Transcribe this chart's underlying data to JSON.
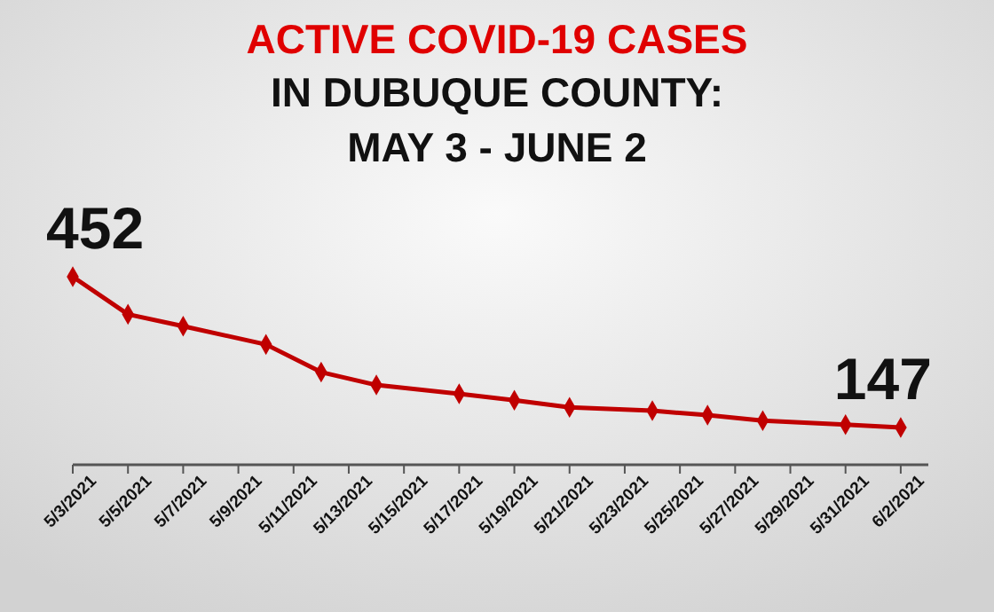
{
  "chart_data": {
    "type": "line",
    "title": "ACTIVE COVID-19 CASES",
    "subtitle": "IN DUBUQUE COUNTY:\nMAY 3 - JUNE 2",
    "x": [
      "2021-05-03",
      "2021-05-05",
      "2021-05-07",
      "2021-05-10",
      "2021-05-12",
      "2021-05-14",
      "2021-05-17",
      "2021-05-19",
      "2021-05-21",
      "2021-05-24",
      "2021-05-26",
      "2021-05-28",
      "2021-05-31",
      "2021-06-02"
    ],
    "series": [
      {
        "color": "#c00000",
        "values": [
          452,
          376,
          352,
          315,
          259,
          233,
          215,
          202,
          188,
          181,
          172,
          161,
          153,
          147
        ],
        "value_labels": [
          "452",
          null,
          null,
          null,
          null,
          null,
          null,
          null,
          null,
          null,
          null,
          null,
          null,
          "147"
        ]
      }
    ],
    "xlim": [
      "2021-05-03",
      "2021-06-03"
    ],
    "xticks": [
      {
        "value": "2021-05-03",
        "label": "5/3/2021"
      },
      {
        "value": "2021-05-05",
        "label": "5/5/2021"
      },
      {
        "value": "2021-05-07",
        "label": "5/7/2021"
      },
      {
        "value": "2021-05-09",
        "label": "5/9/2021"
      },
      {
        "value": "2021-05-11",
        "label": "5/11/2021"
      },
      {
        "value": "2021-05-13",
        "label": "5/13/2021"
      },
      {
        "value": "2021-05-15",
        "label": "5/15/2021"
      },
      {
        "value": "2021-05-17",
        "label": "5/17/2021"
      },
      {
        "value": "2021-05-19",
        "label": "5/19/2021"
      },
      {
        "value": "2021-05-21",
        "label": "5/21/2021"
      },
      {
        "value": "2021-05-23",
        "label": "5/23/2021"
      },
      {
        "value": "2021-05-25",
        "label": "5/25/2021"
      },
      {
        "value": "2021-05-27",
        "label": "5/27/2021"
      },
      {
        "value": "2021-05-29",
        "label": "5/29/2021"
      },
      {
        "value": "2021-05-31",
        "label": "5/31/2021"
      },
      {
        "value": "2021-06-02",
        "label": "6/2/2021"
      }
    ],
    "tick_labels": "x",
    "marker": "diamond",
    "line_style": "solid"
  }
}
